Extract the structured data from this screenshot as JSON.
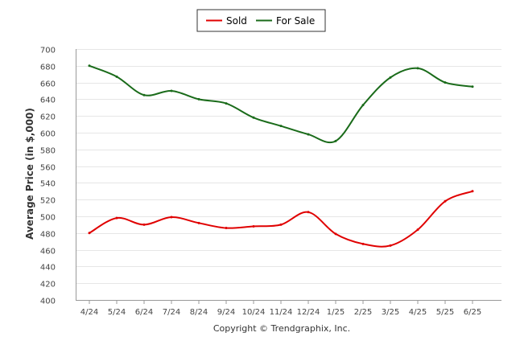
{
  "chart_data": {
    "type": "line",
    "categories": [
      "4/24",
      "5/24",
      "6/24",
      "7/24",
      "8/24",
      "9/24",
      "10/24",
      "11/24",
      "12/24",
      "1/25",
      "2/25",
      "3/25",
      "4/25",
      "5/25",
      "6/25"
    ],
    "series": [
      {
        "name": "Sold",
        "color": "#e00000",
        "values": [
          480,
          498,
          490,
          499,
          492,
          486,
          488,
          490,
          505,
          479,
          467,
          465,
          484,
          518,
          530
        ]
      },
      {
        "name": "For Sale",
        "color": "#1a6b1a",
        "values": [
          680,
          667,
          645,
          650,
          640,
          635,
          618,
          608,
          598,
          590,
          633,
          666,
          677,
          660,
          655
        ]
      }
    ],
    "title": "",
    "xlabel": "",
    "ylabel": "Average Price (in $,000)",
    "ylim": [
      400,
      700
    ],
    "yticks": [
      400,
      420,
      440,
      460,
      480,
      500,
      520,
      540,
      560,
      580,
      600,
      620,
      640,
      660,
      680,
      700
    ],
    "grid": true,
    "legend_position": "top-center"
  },
  "credit": "Copyright © Trendgraphix, Inc."
}
